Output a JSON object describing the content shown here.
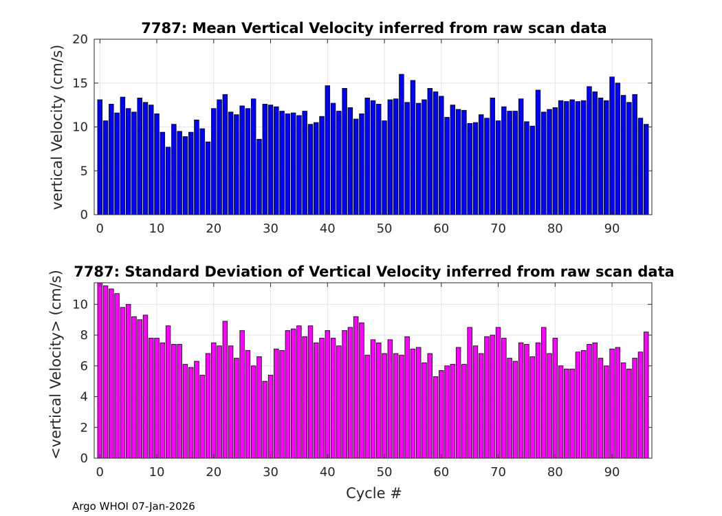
{
  "footer": "Argo WHOI 07-Jan-2026",
  "chart_data": [
    {
      "type": "bar",
      "title": "7787: Mean Vertical Velocity inferred from raw scan data",
      "xlabel": "",
      "ylabel": "vertical Velocity (cm/s)",
      "color": "#0000ff",
      "xlim": [
        -1,
        97
      ],
      "ylim": [
        0,
        20
      ],
      "xticks": [
        0,
        10,
        20,
        30,
        40,
        50,
        60,
        70,
        80,
        90
      ],
      "yticks": [
        0,
        5,
        10,
        15,
        20
      ],
      "x_start": 0,
      "values": [
        13.1,
        10.7,
        12.6,
        11.6,
        13.4,
        12.1,
        11.7,
        13.3,
        12.8,
        12.5,
        11.5,
        9.4,
        7.7,
        10.3,
        9.5,
        8.9,
        9.4,
        10.8,
        9.8,
        8.3,
        12.1,
        13.1,
        13.7,
        11.7,
        11.4,
        12.4,
        12.1,
        13.2,
        8.6,
        12.6,
        12.5,
        12.3,
        11.8,
        11.5,
        11.6,
        11.3,
        11.8,
        10.3,
        10.5,
        11.2,
        14.7,
        12.7,
        11.8,
        14.4,
        12.2,
        10.9,
        11.5,
        13.3,
        13.0,
        12.6,
        10.7,
        13.1,
        13.2,
        16.0,
        12.8,
        15.3,
        12.7,
        13.1,
        14.4,
        14.0,
        13.5,
        11.1,
        12.5,
        12.0,
        11.9,
        10.4,
        10.5,
        11.4,
        11.0,
        13.3,
        10.7,
        12.3,
        11.8,
        11.8,
        13.2,
        10.6,
        10.1,
        14.2,
        11.7,
        12.0,
        12.2,
        13.0,
        12.9,
        13.1,
        12.9,
        13.0,
        14.6,
        14.0,
        13.3,
        13.0,
        15.7,
        15.0,
        13.6,
        12.8,
        13.7,
        11.0,
        10.3
      ]
    },
    {
      "type": "bar",
      "title": "7787: Standard Deviation of Vertical Velocity inferred from raw scan data",
      "xlabel": "Cycle #",
      "ylabel": "<vertical Velocity> (cm/s)",
      "color": "#ff00ff",
      "xlim": [
        -1,
        97
      ],
      "ylim": [
        0,
        11.4
      ],
      "xticks": [
        0,
        10,
        20,
        30,
        40,
        50,
        60,
        70,
        80,
        90
      ],
      "yticks": [
        0,
        2,
        4,
        6,
        8,
        10
      ],
      "x_start": 0,
      "values": [
        11.4,
        11.2,
        11.0,
        10.7,
        9.8,
        10.0,
        9.2,
        9.0,
        9.3,
        7.8,
        7.8,
        7.5,
        8.6,
        7.4,
        7.4,
        6.1,
        5.9,
        6.3,
        5.4,
        6.8,
        7.5,
        7.3,
        8.9,
        7.3,
        6.5,
        8.3,
        7.0,
        6.0,
        6.6,
        5.0,
        5.4,
        7.1,
        7.0,
        8.3,
        8.4,
        8.6,
        7.9,
        8.6,
        7.5,
        7.8,
        8.3,
        7.8,
        7.3,
        8.3,
        8.5,
        9.2,
        8.8,
        6.7,
        7.7,
        7.5,
        6.8,
        7.7,
        6.8,
        6.7,
        7.9,
        7.1,
        7.2,
        6.2,
        6.8,
        5.3,
        5.7,
        6.0,
        6.1,
        7.2,
        6.1,
        8.5,
        7.3,
        6.8,
        7.9,
        8.0,
        8.5,
        7.8,
        6.5,
        6.3,
        7.5,
        7.4,
        6.6,
        7.5,
        8.5,
        6.8,
        7.8,
        6.0,
        5.8,
        5.8,
        6.9,
        7.0,
        7.4,
        7.5,
        6.5,
        6.0,
        7.1,
        7.2,
        6.2,
        5.8,
        6.5,
        6.9,
        8.2
      ]
    }
  ]
}
